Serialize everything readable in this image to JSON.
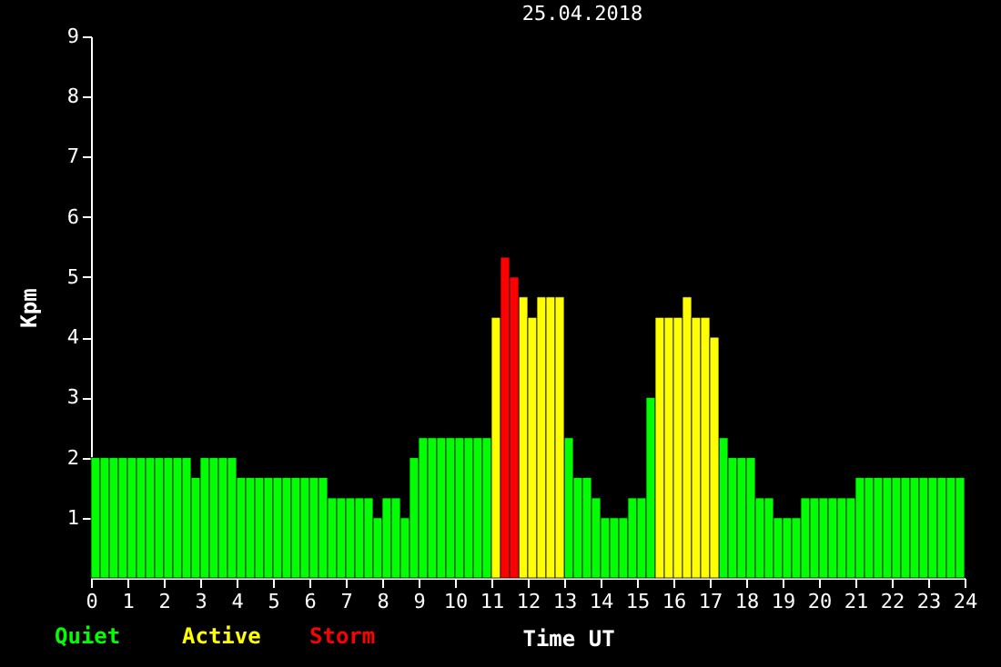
{
  "chart_data": {
    "type": "bar",
    "title": "25.04.2018",
    "xlabel": "Time UT",
    "ylabel": "Kpm",
    "x": [
      0.125,
      0.375,
      0.625,
      0.875,
      1.125,
      1.375,
      1.625,
      1.875,
      2.125,
      2.375,
      2.625,
      2.875,
      3.125,
      3.375,
      3.625,
      3.875,
      4.125,
      4.375,
      4.625,
      4.875,
      5.125,
      5.375,
      5.625,
      5.875,
      6.125,
      6.375,
      6.625,
      6.875,
      7.125,
      7.375,
      7.625,
      7.875,
      8.125,
      8.375,
      8.625,
      8.875,
      9.125,
      9.375,
      9.625,
      9.875,
      10.125,
      10.375,
      10.625,
      10.875,
      11.125,
      11.375,
      11.625,
      11.875,
      12.125,
      12.375,
      12.625,
      12.875,
      13.125,
      13.375,
      13.625,
      13.875,
      14.125,
      14.375,
      14.625,
      14.875,
      15.125,
      15.375,
      15.625,
      15.875,
      16.125,
      16.375,
      16.625,
      16.875,
      17.125,
      17.375,
      17.625,
      17.875,
      18.125,
      18.375,
      18.625,
      18.875,
      19.125,
      19.375,
      19.625,
      19.875,
      20.125,
      20.375,
      20.625,
      20.875,
      21.125,
      21.375,
      21.625,
      21.875,
      22.125,
      22.375,
      22.625,
      22.875,
      23.125,
      23.375,
      23.625,
      23.875
    ],
    "series": [
      {
        "name": "Quiet",
        "color": "#00ff00",
        "values": [
          2,
          2,
          2,
          2,
          2,
          2,
          2,
          2,
          2,
          2,
          2,
          1.67,
          2,
          2,
          2,
          2,
          1.67,
          1.67,
          1.67,
          1.67,
          1.67,
          1.67,
          1.67,
          1.67,
          1.67,
          1.67,
          1.33,
          1.33,
          1.33,
          1.33,
          1.33,
          1,
          1.33,
          1.33,
          1,
          2,
          2.33,
          2.33,
          2.33,
          2.33,
          2.33,
          2.33,
          2.33,
          2.33,
          null,
          null,
          null,
          null,
          null,
          null,
          null,
          null,
          2.33,
          1.67,
          1.67,
          1.33,
          1,
          1,
          1,
          1.33,
          1.33,
          3,
          null,
          null,
          null,
          null,
          null,
          null,
          null,
          2.33,
          2,
          2,
          2,
          1.33,
          1.33,
          1,
          1,
          1,
          1.33,
          1.33,
          1.33,
          1.33,
          1.33,
          1.33,
          1.67,
          1.67,
          1.67,
          1.67,
          1.67,
          1.67,
          1.67,
          1.67,
          1.67,
          1.67,
          1.67,
          1.67
        ]
      },
      {
        "name": "Active",
        "color": "#ffff00",
        "values": [
          null,
          null,
          null,
          null,
          null,
          null,
          null,
          null,
          null,
          null,
          null,
          null,
          null,
          null,
          null,
          null,
          null,
          null,
          null,
          null,
          null,
          null,
          null,
          null,
          null,
          null,
          null,
          null,
          null,
          null,
          null,
          null,
          null,
          null,
          null,
          null,
          null,
          null,
          null,
          null,
          null,
          null,
          null,
          null,
          4.33,
          null,
          null,
          4.67,
          4.33,
          4.67,
          4.67,
          4.67,
          null,
          null,
          null,
          null,
          null,
          null,
          null,
          null,
          null,
          null,
          4.33,
          4.33,
          4.33,
          4.67,
          4.33,
          4.33,
          4,
          null,
          null,
          null,
          null,
          null,
          null,
          null,
          null,
          null,
          null,
          null,
          null,
          null,
          null,
          null,
          null,
          null,
          null,
          null,
          null,
          null,
          null,
          null,
          null,
          null,
          null,
          null
        ]
      },
      {
        "name": "Storm",
        "color": "#ff0000",
        "values": [
          null,
          null,
          null,
          null,
          null,
          null,
          null,
          null,
          null,
          null,
          null,
          null,
          null,
          null,
          null,
          null,
          null,
          null,
          null,
          null,
          null,
          null,
          null,
          null,
          null,
          null,
          null,
          null,
          null,
          null,
          null,
          null,
          null,
          null,
          null,
          null,
          null,
          null,
          null,
          null,
          null,
          null,
          null,
          null,
          null,
          5.33,
          5,
          null,
          null,
          null,
          null,
          null,
          null,
          null,
          null,
          null,
          null,
          null,
          null,
          null,
          null,
          null,
          null,
          null,
          null,
          null,
          null,
          null,
          null,
          null,
          null,
          null,
          null,
          null,
          null,
          null,
          null,
          null,
          null,
          null,
          null,
          null,
          null,
          null,
          null,
          null,
          null,
          null,
          null,
          null,
          null,
          null,
          null,
          null,
          null,
          null
        ]
      }
    ],
    "xlim": [
      0,
      24
    ],
    "xticks": [
      0,
      1,
      2,
      3,
      4,
      5,
      6,
      7,
      8,
      9,
      10,
      11,
      12,
      13,
      14,
      15,
      16,
      17,
      18,
      19,
      20,
      21,
      22,
      23,
      24
    ],
    "ylim": [
      0,
      9
    ],
    "yticks": [
      1,
      2,
      3,
      4,
      5,
      6,
      7,
      8,
      9
    ]
  }
}
